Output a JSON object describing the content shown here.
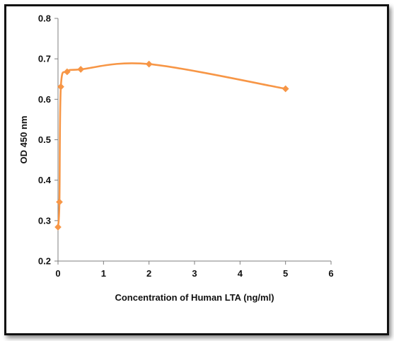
{
  "chart_data": {
    "type": "line",
    "title": "",
    "xlabel": "Concentration of Human LTA (ng/ml)",
    "ylabel": "OD 450 nm",
    "xlim": [
      0,
      6
    ],
    "ylim": [
      0.2,
      0.8
    ],
    "x_ticks": [
      "0",
      "1",
      "2",
      "3",
      "4",
      "5",
      "6"
    ],
    "y_ticks": [
      "0.2",
      "0.3",
      "0.4",
      "0.5",
      "0.6",
      "0.7",
      "0.8"
    ],
    "grid": false,
    "legend": "none",
    "smooth": true,
    "marker": "diamond",
    "series": [
      {
        "color": "#F79646",
        "x": [
          0,
          0.03125,
          0.0625,
          0.2,
          0.5,
          2,
          5
        ],
        "y": [
          0.284,
          0.346,
          0.631,
          0.668,
          0.674,
          0.687,
          0.626
        ]
      }
    ]
  }
}
